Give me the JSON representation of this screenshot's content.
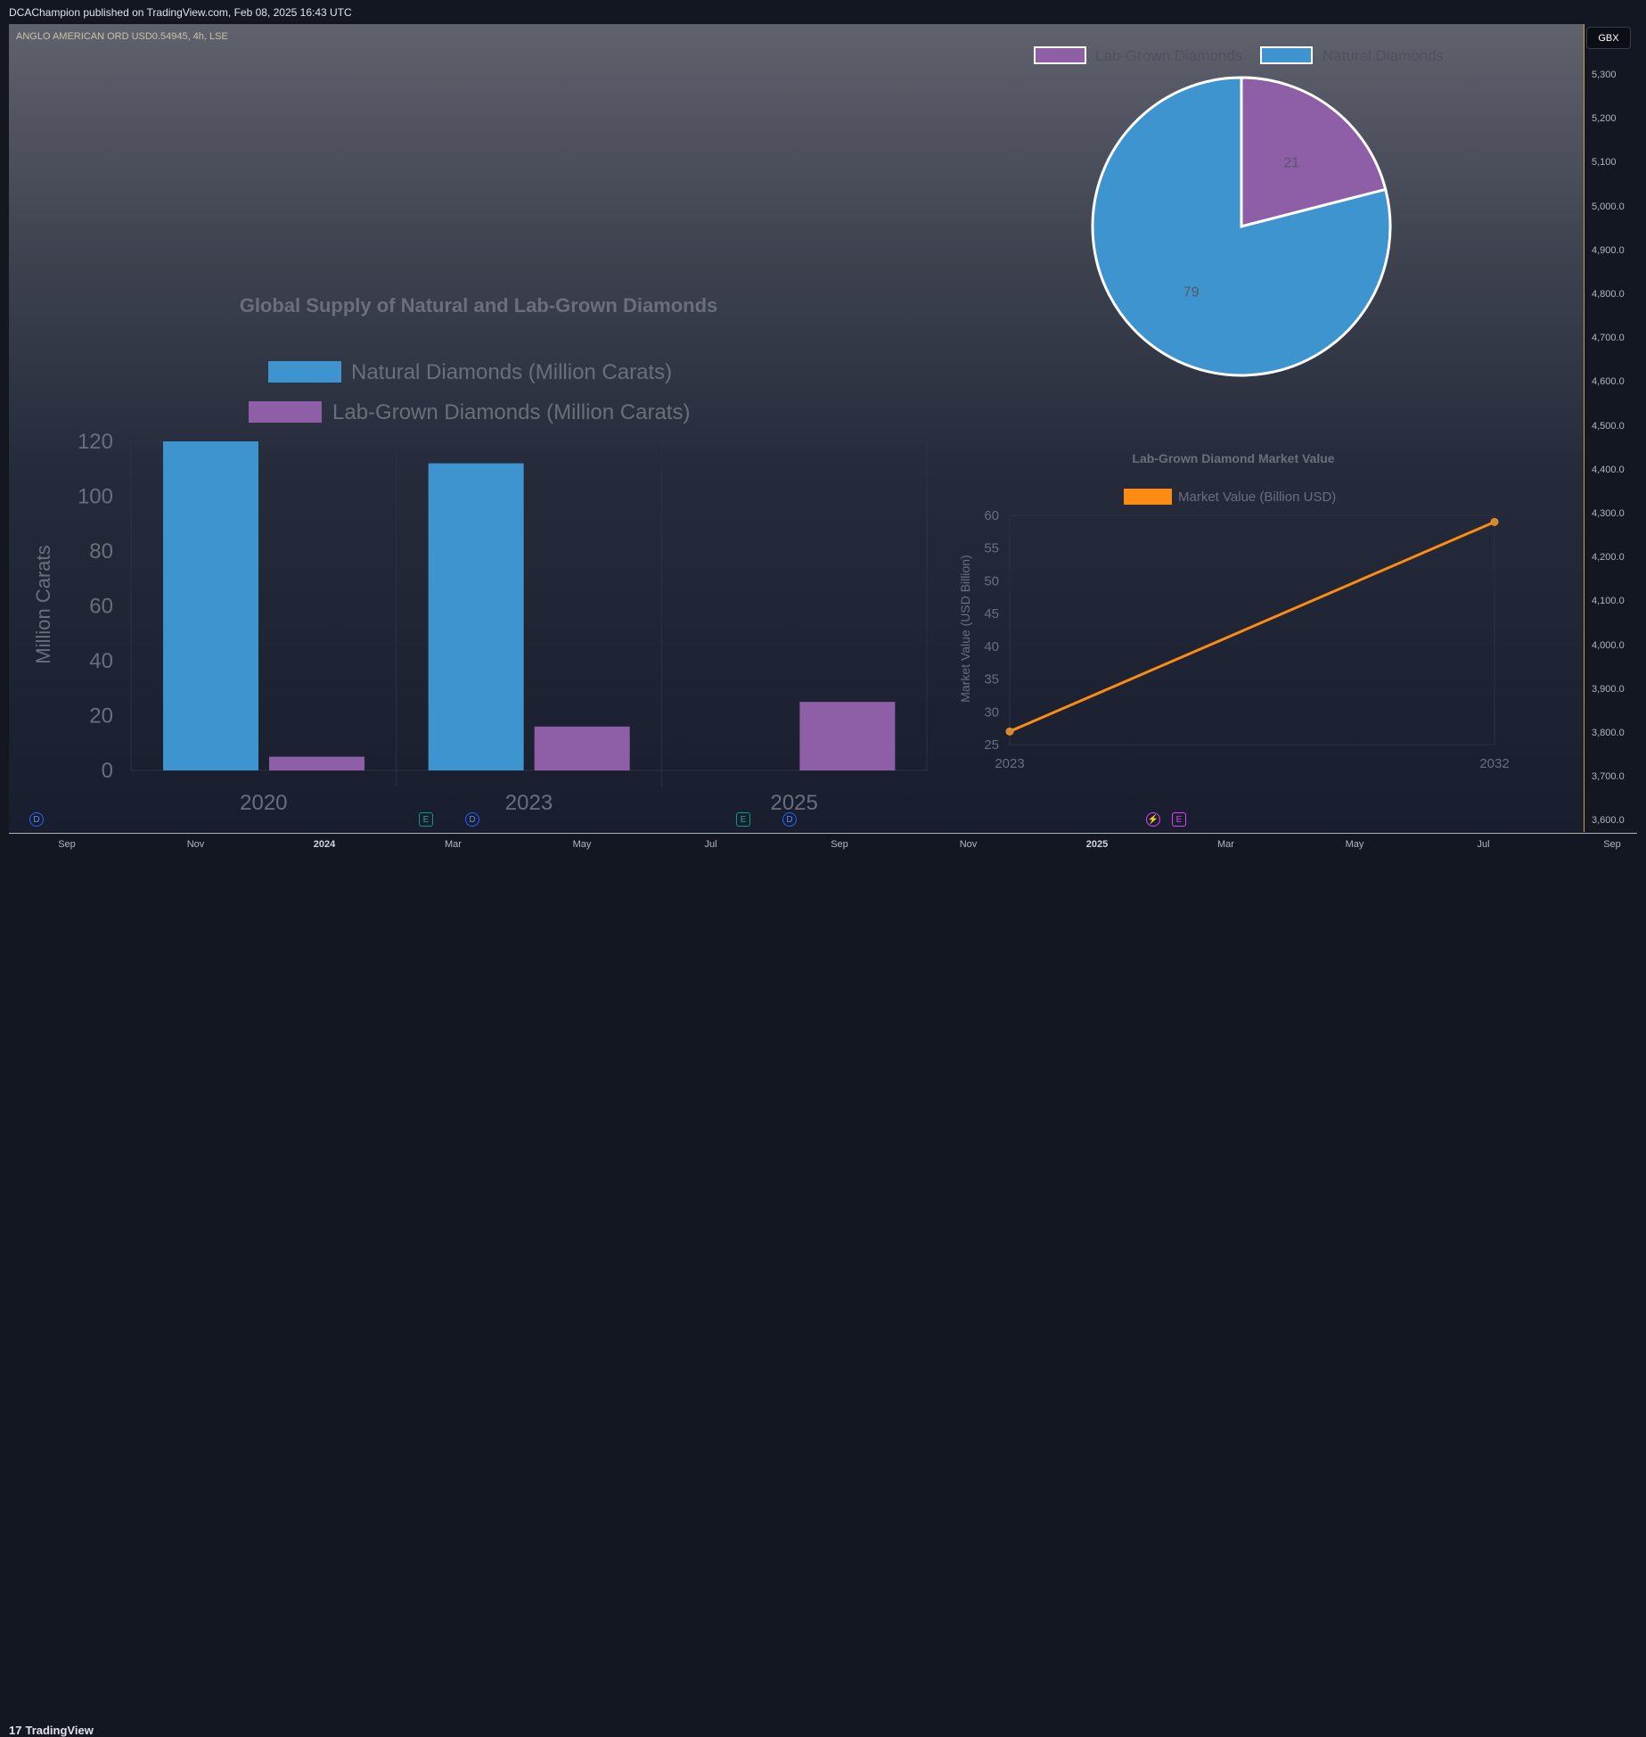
{
  "header": {
    "published_text": "DCAChampion published on TradingView.com, Feb 08, 2025 16:43 UTC"
  },
  "symbol": {
    "label": "ANGLO AMERICAN ORD USD0.54945, 4h, LSE"
  },
  "price_axis": {
    "currency": "GBX",
    "ticks": [
      "5,300",
      "5,200",
      "5,100",
      "5,000.0",
      "4,900.0",
      "4,800.0",
      "4,700.0",
      "4,600.0",
      "4,500.0",
      "4,400.0",
      "4,300.0",
      "4,200.0",
      "4,100.0",
      "4,000.0",
      "3,900.0",
      "3,800.0",
      "3,700.0",
      "3,600.0"
    ]
  },
  "time_axis": {
    "ticks": [
      {
        "label": "Sep",
        "bold": false
      },
      {
        "label": "Nov",
        "bold": false
      },
      {
        "label": "2024",
        "bold": true
      },
      {
        "label": "Mar",
        "bold": false
      },
      {
        "label": "May",
        "bold": false
      },
      {
        "label": "Jul",
        "bold": false
      },
      {
        "label": "Sep",
        "bold": false
      },
      {
        "label": "Nov",
        "bold": false
      },
      {
        "label": "2025",
        "bold": true
      },
      {
        "label": "Mar",
        "bold": false
      },
      {
        "label": "May",
        "bold": false
      },
      {
        "label": "Jul",
        "bold": false
      },
      {
        "label": "Sep",
        "bold": false
      }
    ]
  },
  "events": [
    {
      "type": "D",
      "style": "d"
    },
    {
      "type": "E",
      "style": "e"
    },
    {
      "type": "D",
      "style": "d"
    },
    {
      "type": "E",
      "style": "e"
    },
    {
      "type": "D",
      "style": "d"
    },
    {
      "type": "⚡",
      "style": "s"
    },
    {
      "type": "E",
      "style": "e2"
    }
  ],
  "footer": {
    "brand": "TradingView",
    "brand_logo": "17"
  },
  "colors": {
    "natural": "#3d94cf",
    "lab": "#8e5ea6",
    "market": "#ff8c12"
  },
  "chart_data": [
    {
      "type": "bar",
      "title": "Global Supply of Natural and Lab-Grown Diamonds",
      "categories": [
        "2020",
        "2023",
        "2025"
      ],
      "series": [
        {
          "name": "Natural Diamonds (Million Carats)",
          "values": [
            120,
            112,
            null
          ]
        },
        {
          "name": "Lab-Grown Diamonds (Million Carats)",
          "values": [
            5,
            16,
            25
          ]
        }
      ],
      "ylabel": "Million Carats",
      "xlabel": "",
      "ylim": [
        0,
        120
      ],
      "yticks": [
        0,
        20,
        40,
        60,
        80,
        100,
        120
      ],
      "legend": "top"
    },
    {
      "type": "pie",
      "labels": [
        "Lab-Grown Diamonds",
        "Natural Diamonds"
      ],
      "values": [
        21,
        79
      ],
      "legend": "top"
    },
    {
      "type": "line",
      "title": "Lab-Grown Diamond Market Value",
      "series": [
        {
          "name": "Market Value (Billion USD)",
          "x": [
            "2023",
            "2032"
          ],
          "values": [
            27,
            59
          ]
        }
      ],
      "ylabel": "Market Value (USD Billion)",
      "xlabel": "",
      "ylim": [
        25,
        60
      ],
      "yticks": [
        25,
        30,
        35,
        40,
        45,
        50,
        55,
        60
      ],
      "legend": "top"
    }
  ]
}
